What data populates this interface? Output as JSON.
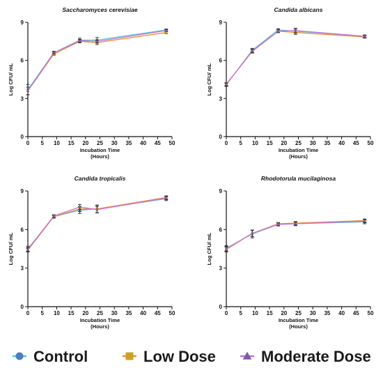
{
  "chart_data": [
    {
      "type": "line",
      "title": "Saccharomyces cerevisiae",
      "xlabel": [
        "Incubation Time",
        "(Hours)"
      ],
      "ylabel": "Log CFU/ mL",
      "xlim": [
        0,
        50
      ],
      "ylim": [
        0,
        9
      ],
      "xticks": [
        0,
        5,
        10,
        15,
        20,
        25,
        30,
        35,
        40,
        45,
        50
      ],
      "yticks": [
        0,
        3,
        6,
        9
      ],
      "x": [
        0,
        9,
        18,
        24,
        48
      ],
      "series": [
        {
          "name": "Control",
          "values": [
            3.7,
            6.6,
            7.6,
            7.6,
            8.4
          ],
          "err": [
            0.4,
            0.12,
            0.15,
            0.2,
            0.08
          ]
        },
        {
          "name": "Low Dose",
          "values": [
            3.6,
            6.5,
            7.5,
            7.4,
            8.2
          ],
          "err": [
            0.3,
            0.1,
            0.12,
            0.15,
            0.1
          ]
        },
        {
          "name": "Moderate Dose",
          "values": [
            3.6,
            6.6,
            7.55,
            7.5,
            8.35
          ],
          "err": [
            0.3,
            0.1,
            0.1,
            0.12,
            0.08
          ]
        }
      ]
    },
    {
      "type": "line",
      "title": "Candida albicans",
      "xlabel": [
        "Incubation Time",
        "(Hours)"
      ],
      "ylabel": "Log CFU/ mL",
      "xlim": [
        0,
        50
      ],
      "ylim": [
        0,
        9
      ],
      "xticks": [
        0,
        5,
        10,
        15,
        20,
        25,
        30,
        35,
        40,
        45,
        50
      ],
      "yticks": [
        0,
        3,
        6,
        9
      ],
      "x": [
        0,
        9,
        18,
        24,
        48
      ],
      "series": [
        {
          "name": "Control",
          "values": [
            4.1,
            6.8,
            8.4,
            8.3,
            7.9
          ],
          "err": [
            0.15,
            0.15,
            0.1,
            0.15,
            0.1
          ]
        },
        {
          "name": "Low Dose",
          "values": [
            4.15,
            6.7,
            8.3,
            8.2,
            7.85
          ],
          "err": [
            0.1,
            0.12,
            0.1,
            0.15,
            0.1
          ]
        },
        {
          "name": "Moderate Dose",
          "values": [
            4.1,
            6.75,
            8.3,
            8.35,
            7.9
          ],
          "err": [
            0.1,
            0.12,
            0.12,
            0.18,
            0.1
          ]
        }
      ]
    },
    {
      "type": "line",
      "title": "Candida tropicalis",
      "xlabel": [
        "Incubation Time",
        "(Hours)"
      ],
      "ylabel": "Log CFU/ mL",
      "xlim": [
        0,
        50
      ],
      "ylim": [
        0,
        9
      ],
      "xticks": [
        0,
        5,
        10,
        15,
        20,
        25,
        30,
        35,
        40,
        45,
        50
      ],
      "yticks": [
        0,
        3,
        6,
        9
      ],
      "x": [
        0,
        9,
        18,
        24,
        48
      ],
      "series": [
        {
          "name": "Control",
          "values": [
            4.5,
            7.0,
            7.5,
            7.6,
            8.4
          ],
          "err": [
            0.2,
            0.12,
            0.25,
            0.3,
            0.15
          ]
        },
        {
          "name": "Low Dose",
          "values": [
            4.4,
            7.0,
            7.6,
            7.6,
            8.5
          ],
          "err": [
            0.15,
            0.1,
            0.2,
            0.3,
            0.12
          ]
        },
        {
          "name": "Moderate Dose",
          "values": [
            4.45,
            7.05,
            7.75,
            7.55,
            8.45
          ],
          "err": [
            0.15,
            0.1,
            0.2,
            0.25,
            0.12
          ]
        }
      ]
    },
    {
      "type": "line",
      "title": "Rhodotorula mucilaginosa",
      "xlabel": [
        "Incubation Time",
        "(Hours)"
      ],
      "ylabel": "Log CFU/ mL",
      "xlim": [
        0,
        50
      ],
      "ylim": [
        0,
        9
      ],
      "xticks": [
        0,
        5,
        10,
        15,
        20,
        25,
        30,
        35,
        40,
        45,
        50
      ],
      "yticks": [
        0,
        3,
        6,
        9
      ],
      "x": [
        0,
        9,
        18,
        24,
        48
      ],
      "series": [
        {
          "name": "Control",
          "values": [
            4.55,
            5.65,
            6.4,
            6.45,
            6.6
          ],
          "err": [
            0.2,
            0.3,
            0.12,
            0.15,
            0.15
          ]
        },
        {
          "name": "Low Dose",
          "values": [
            4.45,
            5.7,
            6.45,
            6.5,
            6.7
          ],
          "err": [
            0.2,
            0.25,
            0.1,
            0.12,
            0.12
          ]
        },
        {
          "name": "Moderate Dose",
          "values": [
            4.5,
            5.7,
            6.4,
            6.45,
            6.65
          ],
          "err": [
            0.2,
            0.25,
            0.1,
            0.12,
            0.12
          ]
        }
      ]
    }
  ],
  "series_styles": [
    {
      "name": "Control",
      "line_color": "#4fc9d6",
      "marker_color": "#4a7fc6",
      "marker": "circle"
    },
    {
      "name": "Low Dose",
      "line_color": "#f28a30",
      "marker_color": "#c9a227",
      "marker": "square"
    },
    {
      "name": "Moderate Dose",
      "line_color": "#c96fd6",
      "marker_color": "#7a5ca3",
      "marker": "triangle"
    }
  ],
  "legend": {
    "position": "bottom",
    "items": [
      "Control",
      "Low Dose",
      "Moderate Dose"
    ]
  }
}
